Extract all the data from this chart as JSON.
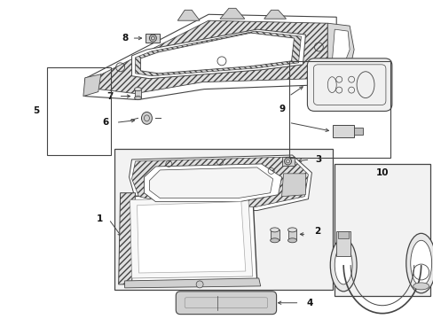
{
  "background_color": "#ffffff",
  "fig_width": 4.89,
  "fig_height": 3.6,
  "dpi": 100,
  "line_color": "#444444",
  "text_color": "#111111",
  "light_gray": "#e8e8e8",
  "mid_gray": "#cccccc",
  "hatch_color": "#888888"
}
